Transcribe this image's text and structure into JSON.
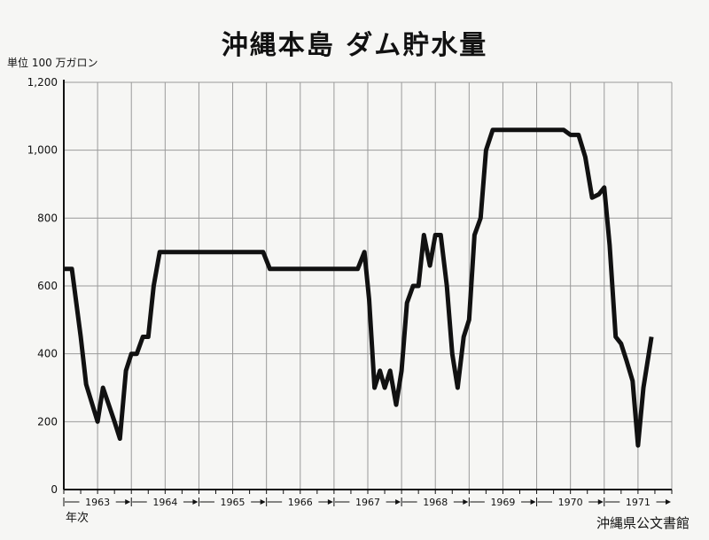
{
  "chart_data": {
    "type": "line",
    "title": "沖縄本島 ダム貯水量",
    "unit_label": "単位 100 万ガロン",
    "xlabel": "年次",
    "ylim": [
      0,
      1200
    ],
    "yticks": [
      0,
      200,
      400,
      600,
      800,
      1000,
      1200
    ],
    "ytick_labels": [
      "0",
      "200",
      "400",
      "600",
      "800",
      "1,000",
      "1,200"
    ],
    "x_range": [
      1963.0,
      1972.0
    ],
    "year_labels": [
      {
        "label": "1963",
        "start": 1963,
        "end": 1964
      },
      {
        "label": "1964",
        "start": 1964,
        "end": 1965
      },
      {
        "label": "1965",
        "start": 1965,
        "end": 1966
      },
      {
        "label": "1966",
        "start": 1966,
        "end": 1967
      },
      {
        "label": "1967",
        "start": 1967,
        "end": 1968
      },
      {
        "label": "1968",
        "start": 1968,
        "end": 1969
      },
      {
        "label": "1969",
        "start": 1969,
        "end": 1970
      },
      {
        "label": "1970",
        "start": 1970,
        "end": 1971
      },
      {
        "label": "1971",
        "start": 1971,
        "end": 1972
      }
    ],
    "grid": true,
    "series": [
      {
        "color": "#111111",
        "points": [
          [
            1963.0,
            650
          ],
          [
            1963.12,
            650
          ],
          [
            1963.25,
            450
          ],
          [
            1963.33,
            310
          ],
          [
            1963.5,
            200
          ],
          [
            1963.58,
            300
          ],
          [
            1963.75,
            200
          ],
          [
            1963.83,
            150
          ],
          [
            1963.92,
            350
          ],
          [
            1964.0,
            400
          ],
          [
            1964.08,
            400
          ],
          [
            1964.17,
            450
          ],
          [
            1964.25,
            450
          ],
          [
            1964.33,
            600
          ],
          [
            1964.42,
            700
          ],
          [
            1965.0,
            700
          ],
          [
            1965.5,
            700
          ],
          [
            1965.95,
            700
          ],
          [
            1966.05,
            650
          ],
          [
            1966.5,
            650
          ],
          [
            1967.0,
            650
          ],
          [
            1967.35,
            650
          ],
          [
            1967.45,
            700
          ],
          [
            1967.52,
            560
          ],
          [
            1967.6,
            300
          ],
          [
            1967.68,
            350
          ],
          [
            1967.75,
            300
          ],
          [
            1967.83,
            350
          ],
          [
            1967.92,
            250
          ],
          [
            1968.0,
            350
          ],
          [
            1968.08,
            550
          ],
          [
            1968.17,
            600
          ],
          [
            1968.25,
            600
          ],
          [
            1968.33,
            750
          ],
          [
            1968.42,
            660
          ],
          [
            1968.5,
            750
          ],
          [
            1968.58,
            750
          ],
          [
            1968.67,
            600
          ],
          [
            1968.75,
            400
          ],
          [
            1968.83,
            300
          ],
          [
            1968.92,
            450
          ],
          [
            1969.0,
            500
          ],
          [
            1969.08,
            750
          ],
          [
            1969.17,
            800
          ],
          [
            1969.25,
            1000
          ],
          [
            1969.35,
            1060
          ],
          [
            1969.5,
            1060
          ],
          [
            1970.0,
            1060
          ],
          [
            1970.4,
            1060
          ],
          [
            1970.5,
            1045
          ],
          [
            1970.62,
            1045
          ],
          [
            1970.72,
            980
          ],
          [
            1970.82,
            860
          ],
          [
            1970.92,
            870
          ],
          [
            1971.0,
            890
          ],
          [
            1971.08,
            720
          ],
          [
            1971.17,
            450
          ],
          [
            1971.25,
            430
          ],
          [
            1971.33,
            380
          ],
          [
            1971.42,
            320
          ],
          [
            1971.5,
            130
          ],
          [
            1971.58,
            300
          ],
          [
            1971.7,
            450
          ]
        ]
      }
    ]
  },
  "footer": {
    "credit": "沖縄県公文書館"
  }
}
